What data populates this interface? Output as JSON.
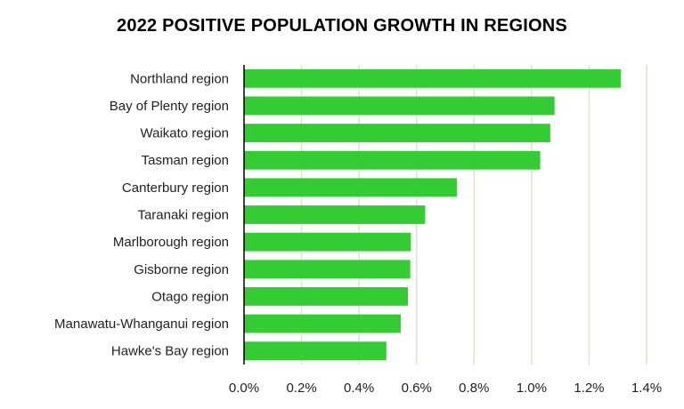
{
  "chart_data": {
    "type": "bar",
    "orientation": "horizontal",
    "title": "2022 POSITIVE POPULATION GROWTH IN REGIONS",
    "categories": [
      "Northland region",
      "Bay of Plenty region",
      "Waikato region",
      "Tasman region",
      "Canterbury region",
      "Taranaki region",
      "Marlborough region",
      "Gisborne region",
      "Otago region",
      "Manawatu-Whanganui region",
      "Hawke's Bay region"
    ],
    "values": [
      1.31,
      1.08,
      1.065,
      1.03,
      0.74,
      0.63,
      0.58,
      0.578,
      0.57,
      0.545,
      0.495
    ],
    "value_unit": "%",
    "xlim": [
      0,
      1.4
    ],
    "x_ticks": [
      "0.0%",
      "0.2%",
      "0.4%",
      "0.6%",
      "0.8%",
      "1.0%",
      "1.2%",
      "1.4%"
    ],
    "grid": "vertical",
    "legend": "none",
    "bar_color": "#33cc33",
    "gridline_color": "#d9e8c8",
    "axis_color": "#000000"
  }
}
